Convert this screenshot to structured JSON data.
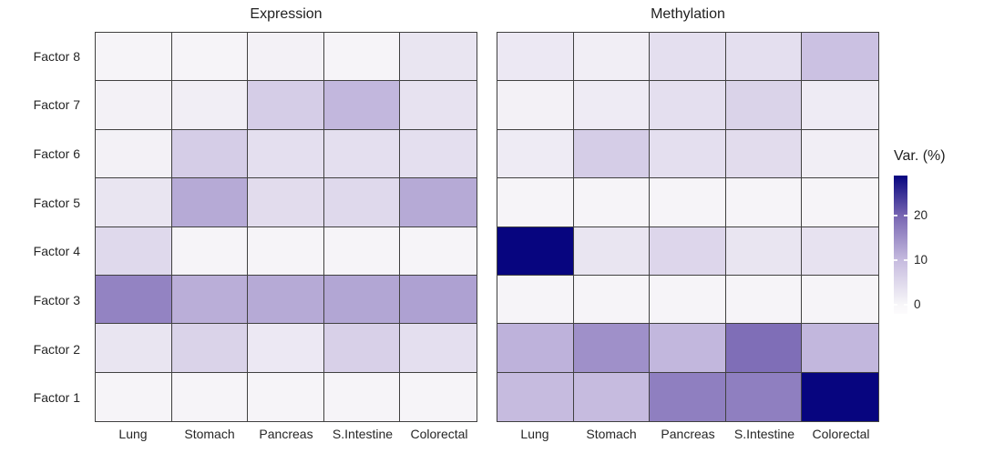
{
  "chart_data": {
    "type": "heatmap",
    "rows": [
      "Factor 8",
      "Factor 7",
      "Factor 6",
      "Factor 5",
      "Factor 4",
      "Factor 3",
      "Factor 2",
      "Factor 1"
    ],
    "columns": [
      "Lung",
      "Stomach",
      "Pancreas",
      "S.Intestine",
      "Colorectal"
    ],
    "panels": [
      {
        "title": "Expression",
        "values": [
          [
            0.5,
            0.5,
            1,
            0.5,
            3
          ],
          [
            1,
            1.5,
            7,
            10.5,
            3.5
          ],
          [
            1,
            7,
            4,
            4,
            4
          ],
          [
            3,
            12,
            4.5,
            5,
            12
          ],
          [
            5,
            0.5,
            0.5,
            0.5,
            0.5
          ],
          [
            16.5,
            11.5,
            12,
            12.5,
            13
          ],
          [
            3,
            6,
            2.5,
            6.5,
            4
          ],
          [
            0.5,
            0.5,
            0.5,
            0.5,
            0.5
          ]
        ]
      },
      {
        "title": "Methylation",
        "values": [
          [
            2.5,
            1.5,
            4,
            4,
            9
          ],
          [
            1,
            2,
            4,
            6,
            2
          ],
          [
            2,
            7,
            4,
            4.5,
            1.5
          ],
          [
            0.5,
            0.5,
            0.5,
            0.5,
            0.5
          ],
          [
            29,
            3,
            5.5,
            3,
            3.5
          ],
          [
            0.5,
            0.5,
            0.5,
            0.5,
            0.5
          ],
          [
            11,
            15,
            10.5,
            19,
            10.5
          ],
          [
            10,
            10,
            17,
            17,
            29
          ]
        ]
      }
    ],
    "legend": {
      "title": "Var. (%)",
      "ticks": [
        20,
        10,
        0
      ],
      "range": [
        -2,
        29
      ]
    },
    "color_scale": {
      "under": "#FCFBFD",
      "stops": [
        [
          0,
          "#F8F7F9"
        ],
        [
          10,
          "#C6BBDF"
        ],
        [
          20,
          "#7765B2"
        ],
        [
          29,
          "#07057F"
        ]
      ]
    },
    "grid_color": "#404040",
    "background": "#FFFFFF",
    "xlabel": "",
    "ylabel": ""
  }
}
